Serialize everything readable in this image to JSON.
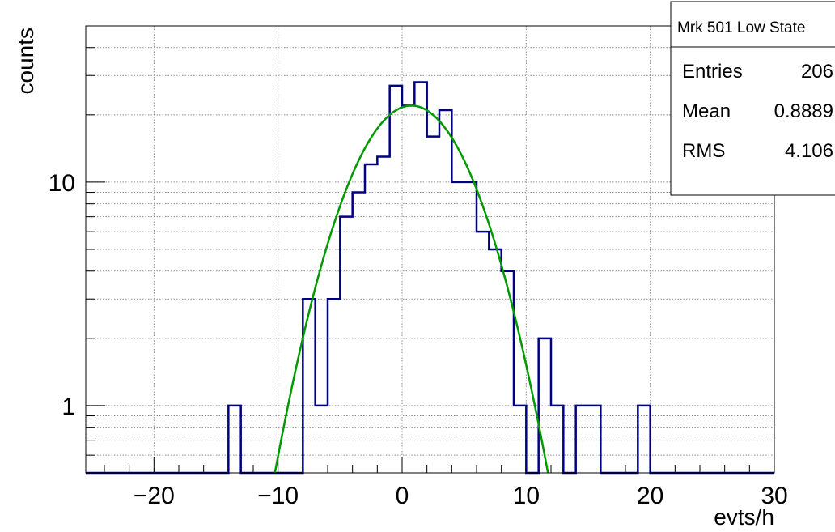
{
  "chart_data": {
    "type": "histogram",
    "xlabel": "evts/h",
    "ylabel": "counts",
    "xlim": [
      -25.5,
      30
    ],
    "ylim": [
      0.5,
      50
    ],
    "yscale": "log",
    "grid": true,
    "x_ticks": [
      -20,
      -10,
      0,
      10,
      20,
      30
    ],
    "x_tick_labels": [
      "−20",
      "−10",
      "0",
      "10",
      "20",
      "30"
    ],
    "y_ticks": [
      1,
      10
    ],
    "y_tick_labels": [
      "1",
      "10"
    ],
    "bin_width": 1,
    "bins_low_edges": [
      -14,
      -13,
      -12,
      -11,
      -10,
      -9,
      -8,
      -7,
      -6,
      -5,
      -4,
      -3,
      -2,
      -1,
      0,
      1,
      2,
      3,
      4,
      5,
      6,
      7,
      8,
      9,
      10,
      11,
      12,
      13,
      14,
      15,
      16,
      17,
      18,
      19,
      20
    ],
    "bins_counts": [
      1,
      0,
      0,
      0,
      0,
      0,
      3,
      1,
      3,
      7,
      9,
      12,
      13,
      27,
      22,
      28,
      16,
      21,
      10,
      10,
      6,
      5,
      4,
      1,
      0,
      2,
      1,
      0,
      1,
      1,
      0,
      0,
      0,
      1,
      0
    ],
    "histogram_color": "#000080",
    "fit": {
      "name": "gaussian",
      "amplitude": 22,
      "mean": 0.75,
      "sigma": 4.0,
      "color": "#009900"
    },
    "stats_box": {
      "title": "Mrk 501 Low State",
      "rows": [
        {
          "label": "Entries",
          "value": "206"
        },
        {
          "label": "Mean",
          "value": "0.8889"
        },
        {
          "label": "RMS",
          "value": "4.106"
        }
      ]
    }
  }
}
